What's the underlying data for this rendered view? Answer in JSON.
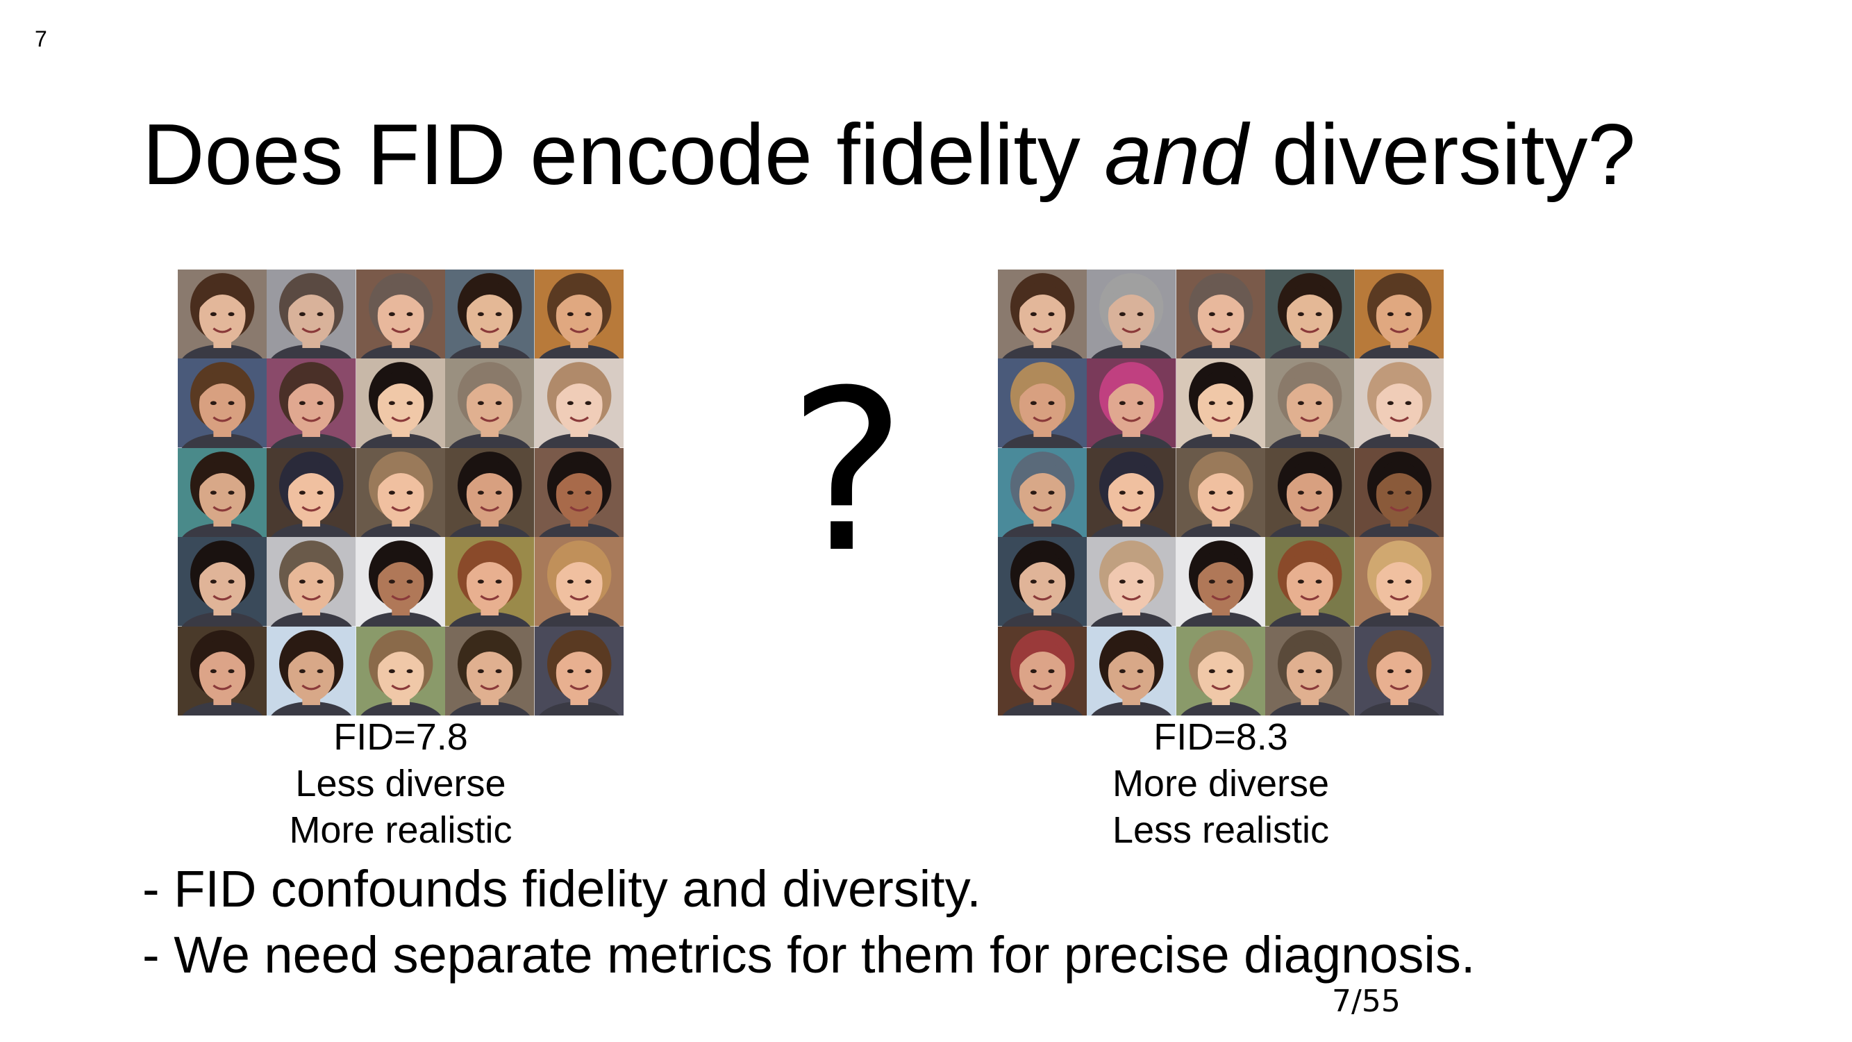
{
  "slide_number_top": "7",
  "title": {
    "before": "Does FID encode fidelity ",
    "emphasis": "and",
    "after": " diversity?"
  },
  "question_mark": "?",
  "left_panel": {
    "fid": "FID=7.8",
    "line1": "Less diverse",
    "line2": "More realistic",
    "tiles": [
      {
        "bg": "#8a7a6e",
        "skin": "#e3b79a",
        "hair": "#4a2e1e"
      },
      {
        "bg": "#9a9aa0",
        "skin": "#d9b29a",
        "hair": "#5a4a42"
      },
      {
        "bg": "#7a5a4a",
        "skin": "#e8b89c",
        "hair": "#6a5a52"
      },
      {
        "bg": "#5a6a78",
        "skin": "#e4b896",
        "hair": "#2a1a12"
      },
      {
        "bg": "#b87a3a",
        "skin": "#e0a880",
        "hair": "#5a3a22"
      },
      {
        "bg": "#4a5a7a",
        "skin": "#d8a080",
        "hair": "#5a3a22"
      },
      {
        "bg": "#8a4a6a",
        "skin": "#e0a890",
        "hair": "#4a3028"
      },
      {
        "bg": "#c8b8a8",
        "skin": "#f0c8a8",
        "hair": "#1a1210"
      },
      {
        "bg": "#9a9080",
        "skin": "#e0b090",
        "hair": "#8a7a6a"
      },
      {
        "bg": "#d8ccc4",
        "skin": "#f0cdb8",
        "hair": "#b08a6a"
      },
      {
        "bg": "#4a8a8a",
        "skin": "#d8a888",
        "hair": "#2a1a12"
      },
      {
        "bg": "#4a3a30",
        "skin": "#f0c0a0",
        "hair": "#2a2a3a"
      },
      {
        "bg": "#6a5a4a",
        "skin": "#f0c0a0",
        "hair": "#9a7a5a"
      },
      {
        "bg": "#5a4a3a",
        "skin": "#d8a080",
        "hair": "#1a1210"
      },
      {
        "bg": "#7a5a4a",
        "skin": "#a86a4a",
        "hair": "#1a1210"
      },
      {
        "bg": "#3a4a5a",
        "skin": "#e0b498",
        "hair": "#1a1210"
      },
      {
        "bg": "#c0c0c4",
        "skin": "#e8b898",
        "hair": "#6a5a4a"
      },
      {
        "bg": "#e8e8ea",
        "skin": "#b07858",
        "hair": "#1a1210"
      },
      {
        "bg": "#9a8a4a",
        "skin": "#e8b090",
        "hair": "#8a4a2a"
      },
      {
        "bg": "#a87a5a",
        "skin": "#f0c0a0",
        "hair": "#c0905a"
      },
      {
        "bg": "#4a3a2a",
        "skin": "#dca488",
        "hair": "#2a1a12"
      },
      {
        "bg": "#c8d8e8",
        "skin": "#d8a888",
        "hair": "#2a1a12"
      },
      {
        "bg": "#8a9a6a",
        "skin": "#f0c8a8",
        "hair": "#8a6a4a"
      },
      {
        "bg": "#7a6a5a",
        "skin": "#e0b090",
        "hair": "#3a2a1a"
      },
      {
        "bg": "#4a4a5a",
        "skin": "#e8b090",
        "hair": "#5a3a22"
      }
    ]
  },
  "right_panel": {
    "fid": "FID=8.3",
    "line1": "More diverse",
    "line2": "Less realistic",
    "tiles": [
      {
        "bg": "#8a7a6e",
        "skin": "#e3b79a",
        "hair": "#4a2e1e"
      },
      {
        "bg": "#9a9aa0",
        "skin": "#d9b29a",
        "hair": "#a0a0a0"
      },
      {
        "bg": "#7a5a4a",
        "skin": "#e8b89c",
        "hair": "#6a5a52"
      },
      {
        "bg": "#4a5a5a",
        "skin": "#e4b896",
        "hair": "#2a1a12"
      },
      {
        "bg": "#b87a3a",
        "skin": "#e0a880",
        "hair": "#5a3a22"
      },
      {
        "bg": "#4a5a7a",
        "skin": "#d8a080",
        "hair": "#b08a5a"
      },
      {
        "bg": "#7a3a5a",
        "skin": "#e0a890",
        "hair": "#c04080"
      },
      {
        "bg": "#d8c8b8",
        "skin": "#f0c8a8",
        "hair": "#1a1210"
      },
      {
        "bg": "#9a9080",
        "skin": "#e0b090",
        "hair": "#8a7a6a"
      },
      {
        "bg": "#d8ccc4",
        "skin": "#f0cdb8",
        "hair": "#c09a7a"
      },
      {
        "bg": "#4a8a9a",
        "skin": "#d8a888",
        "hair": "#5a6a7a"
      },
      {
        "bg": "#4a3a30",
        "skin": "#f0c0a0",
        "hair": "#2a2a3a"
      },
      {
        "bg": "#6a5a4a",
        "skin": "#f0c0a0",
        "hair": "#9a7a5a"
      },
      {
        "bg": "#5a4a3a",
        "skin": "#d8a080",
        "hair": "#1a1210"
      },
      {
        "bg": "#6a4a3a",
        "skin": "#8a5a3a",
        "hair": "#1a1210"
      },
      {
        "bg": "#3a4a5a",
        "skin": "#e0b498",
        "hair": "#1a1210"
      },
      {
        "bg": "#c0c0c4",
        "skin": "#f0c8b0",
        "hair": "#c0a080"
      },
      {
        "bg": "#e8e8ea",
        "skin": "#b07858",
        "hair": "#1a1210"
      },
      {
        "bg": "#7a7a4a",
        "skin": "#e8b090",
        "hair": "#8a4a2a"
      },
      {
        "bg": "#a87a5a",
        "skin": "#f0c0a0",
        "hair": "#d0a870"
      },
      {
        "bg": "#5a3a2a",
        "skin": "#dca488",
        "hair": "#9a3a3a"
      },
      {
        "bg": "#c8d8e8",
        "skin": "#d8a888",
        "hair": "#2a1a12"
      },
      {
        "bg": "#8a9a6a",
        "skin": "#f0c8a8",
        "hair": "#a08060"
      },
      {
        "bg": "#7a6a5a",
        "skin": "#e0b090",
        "hair": "#5a4a3a"
      },
      {
        "bg": "#4a4a5a",
        "skin": "#e8b090",
        "hair": "#6a4a32"
      }
    ]
  },
  "bullets": [
    "- FID confounds fidelity and diversity.",
    "- We need separate metrics for them for precise diagnosis."
  ],
  "page_counter": "7/55"
}
